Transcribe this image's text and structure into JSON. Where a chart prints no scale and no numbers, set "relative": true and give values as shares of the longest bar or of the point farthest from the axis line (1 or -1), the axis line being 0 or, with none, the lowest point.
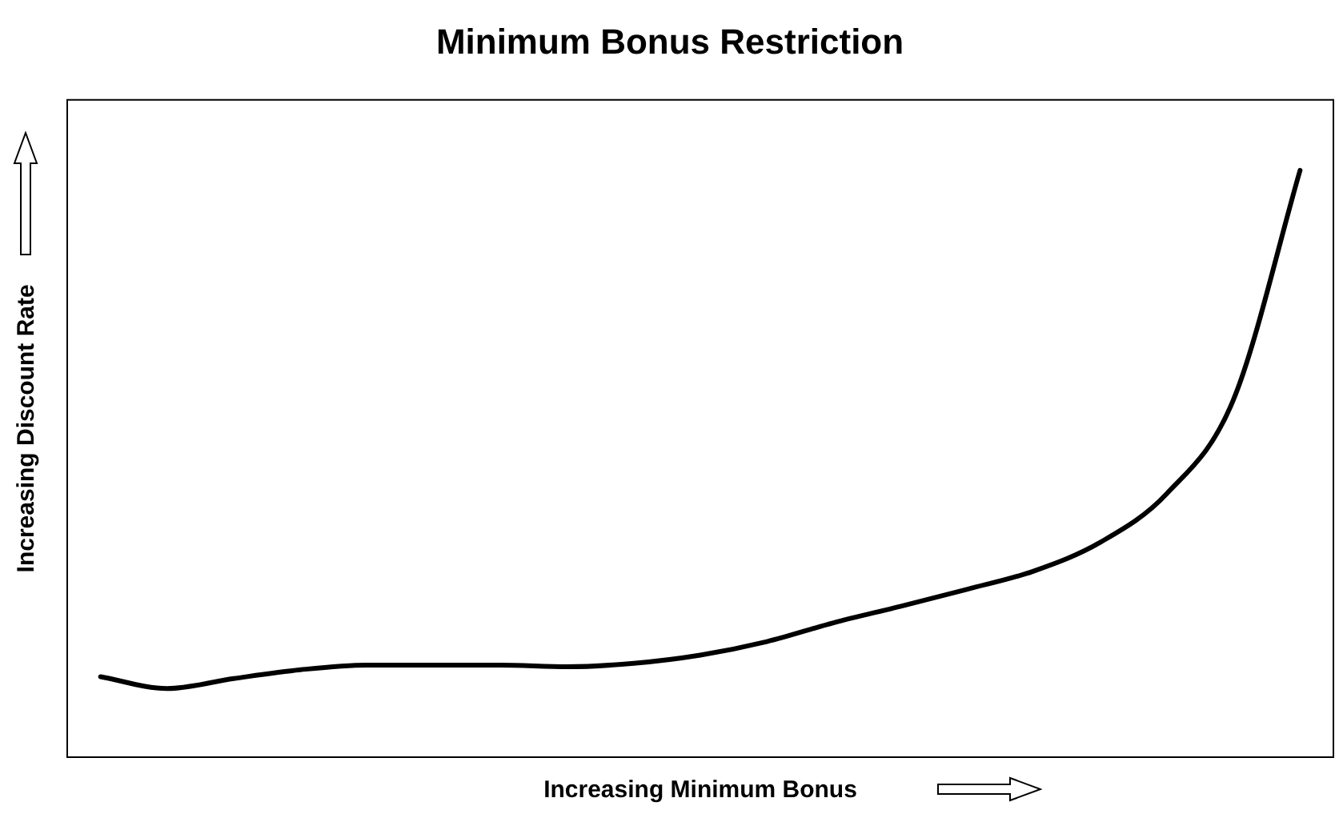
{
  "chart_data": {
    "type": "line",
    "title": "Minimum Bonus Restriction",
    "xlabel": "Increasing Minimum Bonus",
    "ylabel": "Increasing Discount Rate",
    "relative": true,
    "legend": false,
    "grid": false,
    "marker": "none",
    "line_style": "solid",
    "categories": [
      null,
      null,
      null,
      null,
      null,
      null,
      null,
      null,
      null,
      null,
      null,
      null,
      null,
      null,
      null,
      null,
      null,
      null,
      null
    ],
    "series": [
      {
        "color": "#000000",
        "values": [
          0.137,
          0.117,
          0.134,
          0.149,
          0.157,
          0.157,
          0.157,
          0.154,
          0.16,
          0.174,
          0.197,
          0.229,
          0.257,
          0.286,
          0.317,
          0.366,
          0.449,
          0.609,
          1
        ]
      }
    ]
  }
}
